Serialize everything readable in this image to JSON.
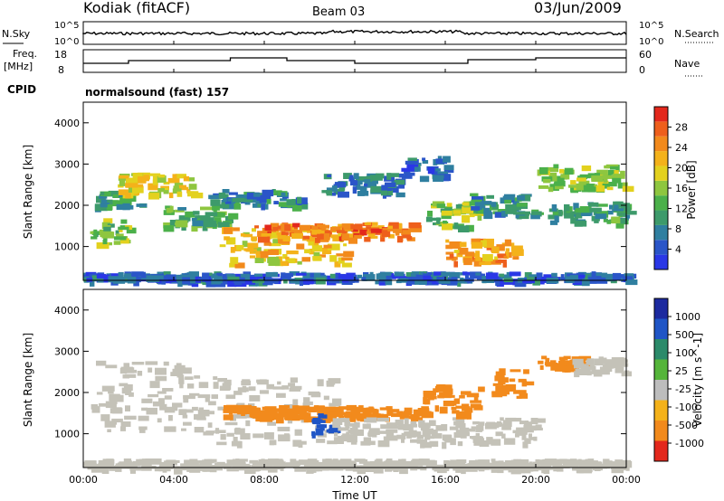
{
  "header": {
    "station": "Kodiak (fitACF)",
    "beam": "Beam 03",
    "date": "03/Jun/2009"
  },
  "noise_panel": {
    "left_label": "N.Sky",
    "right_label": "N.Search",
    "ticks_left": [
      "10^5",
      "10^0"
    ],
    "ticks_right": [
      "10^5",
      "10^0"
    ]
  },
  "freq_panel": {
    "left_label_1": "Freq.",
    "left_label_2": "[MHz]",
    "right_label": "Nave",
    "ticks_left": [
      "18",
      "8"
    ],
    "ticks_right": [
      "60",
      "0"
    ]
  },
  "cpid": {
    "label": "CPID",
    "value": "normalsound (fast) 157"
  },
  "colors": {
    "power": [
      "#2a37e6",
      "#2a55c8",
      "#2f7fa0",
      "#3d9a6b",
      "#4bb04a",
      "#8ec63f",
      "#e3d11e",
      "#f4b21a",
      "#f28a1c",
      "#ee5f1c",
      "#e3281c"
    ],
    "velocity": [
      "#1c2a9f",
      "#1f55c6",
      "#2b8a6a",
      "#55b53a",
      "#bdbdbd",
      "#f4b21a",
      "#f28a1c",
      "#e3281c"
    ],
    "ground_scatter": "#c4c2b8"
  },
  "chart_data": [
    {
      "type": "heatmap",
      "name": "power",
      "xlabel": "",
      "ylabel": "Slant Range [km]",
      "x_ticks": [
        "00:00",
        "04:00",
        "08:00",
        "12:00",
        "16:00",
        "20:00",
        "00:00"
      ],
      "y_ticks": [
        "1000",
        "2000",
        "3000",
        "4000"
      ],
      "ylim": [
        180,
        4500
      ],
      "colorbar_label": "Power [dB]",
      "colorbar_ticks": [
        "4",
        "8",
        "12",
        "16",
        "20",
        "24",
        "28"
      ],
      "clim": [
        0,
        30
      ],
      "regions": [
        {
          "t0": 0.3,
          "t1": 2.0,
          "r0": 1100,
          "r1": 1700,
          "v": 14
        },
        {
          "t0": 0.5,
          "t1": 2.5,
          "r0": 2000,
          "r1": 2400,
          "v": 9
        },
        {
          "t0": 1.5,
          "t1": 4.8,
          "r0": 2300,
          "r1": 2800,
          "v": 18
        },
        {
          "t0": 3.5,
          "t1": 6.5,
          "r0": 1500,
          "r1": 2000,
          "v": 12
        },
        {
          "t0": 5.5,
          "t1": 9.5,
          "r0": 2000,
          "r1": 2400,
          "v": 8
        },
        {
          "t0": 6.0,
          "t1": 11.5,
          "r0": 600,
          "r1": 1500,
          "v": 20
        },
        {
          "t0": 7.5,
          "t1": 14.5,
          "r0": 1200,
          "r1": 1600,
          "v": 24
        },
        {
          "t0": 10.5,
          "t1": 14.0,
          "r0": 2300,
          "r1": 2800,
          "v": 7
        },
        {
          "t0": 14.0,
          "t1": 16.0,
          "r0": 2700,
          "r1": 3200,
          "v": 6
        },
        {
          "t0": 15.0,
          "t1": 17.5,
          "r0": 1500,
          "r1": 2100,
          "v": 14
        },
        {
          "t0": 16.0,
          "t1": 19.0,
          "r0": 600,
          "r1": 1200,
          "v": 22
        },
        {
          "t0": 17.0,
          "t1": 20.0,
          "r0": 1800,
          "r1": 2300,
          "v": 9
        },
        {
          "t0": 20.0,
          "t1": 24.0,
          "r0": 2400,
          "r1": 3000,
          "v": 15
        },
        {
          "t0": 20.5,
          "t1": 24.0,
          "r0": 1600,
          "r1": 2100,
          "v": 10
        },
        {
          "t0": 0.0,
          "t1": 24.0,
          "r0": 180,
          "r1": 400,
          "v": 5
        }
      ]
    },
    {
      "type": "heatmap",
      "name": "velocity",
      "xlabel": "Time UT",
      "ylabel": "Slant Range [km]",
      "x_ticks": [
        "00:00",
        "04:00",
        "08:00",
        "12:00",
        "16:00",
        "20:00",
        "00:00"
      ],
      "y_ticks": [
        "1000",
        "2000",
        "3000",
        "4000"
      ],
      "ylim": [
        180,
        4500
      ],
      "colorbar_label": "Velocity [m s^-1]",
      "colorbar_ticks": [
        "1000",
        "500",
        "100",
        "25",
        "-25",
        "-100",
        "-500",
        "-1000"
      ],
      "regions": [
        {
          "t0": 0.3,
          "t1": 5.0,
          "r0": 1100,
          "r1": 2800,
          "v": 0
        },
        {
          "t0": 5.0,
          "t1": 11.0,
          "r0": 800,
          "r1": 2400,
          "v": 0
        },
        {
          "t0": 6.0,
          "t1": 15.0,
          "r0": 1400,
          "r1": 1700,
          "v": -150
        },
        {
          "t0": 10.0,
          "t1": 11.0,
          "r0": 1000,
          "r1": 1500,
          "v": 150
        },
        {
          "t0": 11.0,
          "t1": 20.0,
          "r0": 800,
          "r1": 1400,
          "v": 0
        },
        {
          "t0": 15.0,
          "t1": 17.5,
          "r0": 1500,
          "r1": 2200,
          "v": -200
        },
        {
          "t0": 18.0,
          "t1": 19.5,
          "r0": 1900,
          "r1": 2600,
          "v": -150
        },
        {
          "t0": 20.0,
          "t1": 22.0,
          "r0": 2600,
          "r1": 2900,
          "v": -400
        },
        {
          "t0": 21.5,
          "t1": 24.0,
          "r0": 2500,
          "r1": 2900,
          "v": 0
        },
        {
          "t0": 0.0,
          "t1": 24.0,
          "r0": 180,
          "r1": 400,
          "v": 0
        }
      ]
    }
  ]
}
